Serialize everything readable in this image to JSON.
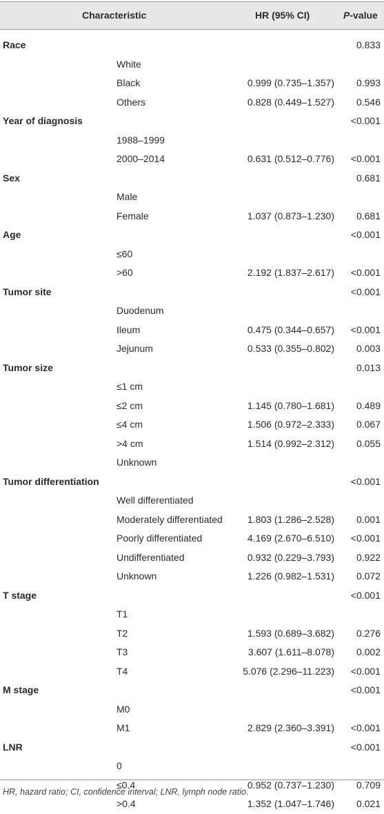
{
  "header": {
    "characteristic": "Characteristic",
    "hr": "HR (95% CI)",
    "p_italic": "P",
    "p_suffix": "-value"
  },
  "rows": [
    {
      "type": "group",
      "label": "Race",
      "hr": "",
      "p": "0.833"
    },
    {
      "type": "sub",
      "label": "White",
      "hr": "",
      "p": ""
    },
    {
      "type": "sub",
      "label": "Black",
      "hr": "0.999 (0.735–1.357)",
      "p": "0.993"
    },
    {
      "type": "sub",
      "label": "Others",
      "hr": "0.828 (0.449–1.527)",
      "p": "0.546"
    },
    {
      "type": "group",
      "label": "Year of diagnosis",
      "hr": "",
      "p": "<0.001"
    },
    {
      "type": "sub",
      "label": "1988–1999",
      "hr": "",
      "p": ""
    },
    {
      "type": "sub",
      "label": "2000–2014",
      "hr": "0.631 (0.512–0.776)",
      "p": "<0.001"
    },
    {
      "type": "group",
      "label": "Sex",
      "hr": "",
      "p": "0.681"
    },
    {
      "type": "sub",
      "label": "Male",
      "hr": "",
      "p": ""
    },
    {
      "type": "sub",
      "label": "Female",
      "hr": "1.037 (0.873–1.230)",
      "p": "0.681"
    },
    {
      "type": "group",
      "label": "Age",
      "hr": "",
      "p": "<0.001"
    },
    {
      "type": "sub",
      "label": "≤60",
      "hr": "",
      "p": ""
    },
    {
      "type": "sub",
      "label": ">60",
      "hr": "2.192 (1.837–2.617)",
      "p": "<0.001"
    },
    {
      "type": "group",
      "label": "Tumor site",
      "hr": "",
      "p": "<0.001"
    },
    {
      "type": "sub",
      "label": "Duodenum",
      "hr": "",
      "p": ""
    },
    {
      "type": "sub",
      "label": "Ileum",
      "hr": "0.475 (0.344–0.657)",
      "p": "<0.001"
    },
    {
      "type": "sub",
      "label": "Jejunum",
      "hr": "0.533 (0.355–0.802)",
      "p": "0.003"
    },
    {
      "type": "group",
      "label": "Tumor size",
      "hr": "",
      "p": "0.013"
    },
    {
      "type": "sub",
      "label": "≤1 cm",
      "hr": "",
      "p": ""
    },
    {
      "type": "sub",
      "label": "≤2 cm",
      "hr": "1.145 (0.780–1.681)",
      "p": "0.489"
    },
    {
      "type": "sub",
      "label": "≤4 cm",
      "hr": "1.506 (0.972–2.333)",
      "p": "0.067"
    },
    {
      "type": "sub",
      "label": ">4 cm",
      "hr": "1.514 (0.992–2.312)",
      "p": "0.055"
    },
    {
      "type": "sub",
      "label": "Unknown",
      "hr": "",
      "p": ""
    },
    {
      "type": "group",
      "label": "Tumor differentiation",
      "hr": "",
      "p": "<0.001"
    },
    {
      "type": "sub",
      "label": "Well differentiated",
      "hr": "",
      "p": ""
    },
    {
      "type": "sub",
      "label": "Moderately differentiated",
      "hr": "1.803 (1.286–2.528)",
      "p": "0.001"
    },
    {
      "type": "sub",
      "label": "Poorly differentiated",
      "hr": "4.169 (2.670–6.510)",
      "p": "<0.001"
    },
    {
      "type": "sub",
      "label": "Undifferentiated",
      "hr": "0.932 (0.229–3.793)",
      "p": "0.922"
    },
    {
      "type": "sub",
      "label": "Unknown",
      "hr": "1.226 (0.982–1.531)",
      "p": "0.072"
    },
    {
      "type": "group",
      "label": "T stage",
      "hr": "",
      "p": "<0.001"
    },
    {
      "type": "sub",
      "label": "T1",
      "hr": "",
      "p": ""
    },
    {
      "type": "sub",
      "label": "T2",
      "hr": "1.593 (0.689–3.682)",
      "p": "0.276"
    },
    {
      "type": "sub",
      "label": "T3",
      "hr": "3.607 (1.611–8.078)",
      "p": "0.002"
    },
    {
      "type": "sub",
      "label": "T4",
      "hr": "5.076 (2.296–11.223)",
      "p": "<0.001"
    },
    {
      "type": "group",
      "label": "M stage",
      "hr": "",
      "p": "<0.001"
    },
    {
      "type": "sub",
      "label": "M0",
      "hr": "",
      "p": ""
    },
    {
      "type": "sub",
      "label": "M1",
      "hr": "2.829 (2.360–3.391)",
      "p": "<0.001"
    },
    {
      "type": "group",
      "label": "LNR",
      "hr": "",
      "p": "<0.001"
    },
    {
      "type": "sub",
      "label": "0",
      "hr": "",
      "p": ""
    },
    {
      "type": "sub",
      "label": "≤0.4",
      "hr": "0.952 (0.737–1.230)",
      "p": "0.709"
    },
    {
      "type": "sub",
      "label": ">0.4",
      "hr": "1.352 (1.047–1.746)",
      "p": "0.021"
    }
  ],
  "footnote": "HR, hazard ratio; CI, confidence interval; LNR, lymph node ratio."
}
